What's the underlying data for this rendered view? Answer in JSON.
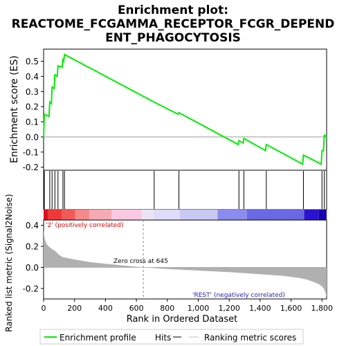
{
  "title_line1": "Enrichment plot:",
  "title_line2": "REACTOME_FCGAMMA_RECEPTOR_FCGR_DEPEND",
  "title_line3": "ENT_PHAGOCYTOSIS",
  "colors": {
    "profile": "#00ee00",
    "hits": "#000000",
    "metric_fill": "#b0b0b0",
    "zero_line": "#888888",
    "pos_label": "#dd0000",
    "neg_label": "#1f1fbf"
  },
  "chart_data": [
    {
      "type": "line",
      "name": "enrichment-profile",
      "ylabel": "Enrichment score (ES)",
      "xlim": [
        0,
        1830
      ],
      "ylim": [
        -0.22,
        0.58
      ],
      "yticks": [
        -0.2,
        -0.1,
        0.0,
        0.1,
        0.2,
        0.3,
        0.4,
        0.5
      ],
      "ytick_labels": [
        "-0.2",
        "-0.1",
        "0.0",
        "0.1",
        "0.2",
        "0.3",
        "0.4",
        "0.5"
      ],
      "x": [
        0,
        5,
        35,
        40,
        50,
        55,
        68,
        73,
        88,
        93,
        120,
        125,
        130,
        135,
        715,
        870,
        875,
        1258,
        1263,
        1290,
        1295,
        1435,
        1440,
        1675,
        1680,
        1795,
        1800,
        1810,
        1815,
        1830
      ],
      "y": [
        0.0,
        0.15,
        0.135,
        0.23,
        0.22,
        0.33,
        0.32,
        0.41,
        0.4,
        0.47,
        0.46,
        0.51,
        0.5,
        0.545,
        0.23,
        0.15,
        0.16,
        -0.05,
        -0.025,
        -0.04,
        -0.01,
        -0.09,
        -0.05,
        -0.18,
        -0.12,
        -0.18,
        -0.09,
        -0.09,
        0.012,
        0.0
      ]
    },
    {
      "type": "scatter",
      "name": "hits",
      "x": [
        5,
        40,
        55,
        73,
        93,
        125,
        135,
        715,
        875,
        1263,
        1295,
        1440,
        1680,
        1800,
        1815
      ]
    },
    {
      "type": "area",
      "name": "ranking-metric",
      "xlabel": "Rank in Ordered Dataset",
      "ylabel": "Ranked list metric (Signal2Noise)",
      "xlim": [
        0,
        1830
      ],
      "ylim": [
        -0.3,
        0.45
      ],
      "xticks": [
        0,
        200,
        400,
        600,
        800,
        1000,
        1200,
        1400,
        1600,
        1800
      ],
      "xtick_labels": [
        "0",
        "200",
        "400",
        "600",
        "800",
        "1,000",
        "1,200",
        "1,400",
        "1,600",
        "1,800"
      ],
      "yticks": [
        -0.2,
        0.0,
        0.2,
        0.4
      ],
      "ytick_labels": [
        "-0.2",
        "0.0",
        "0.2",
        "0.4"
      ],
      "x": [
        0,
        5,
        10,
        20,
        40,
        60,
        80,
        100,
        120,
        150,
        200,
        300,
        400,
        500,
        645,
        800,
        1000,
        1200,
        1400,
        1550,
        1650,
        1700,
        1750,
        1780,
        1800,
        1815,
        1825,
        1830
      ],
      "y": [
        0.35,
        0.3,
        0.26,
        0.22,
        0.19,
        0.17,
        0.15,
        0.12,
        0.1,
        0.09,
        0.075,
        0.05,
        0.035,
        0.02,
        0.0,
        -0.015,
        -0.03,
        -0.045,
        -0.065,
        -0.08,
        -0.1,
        -0.115,
        -0.14,
        -0.16,
        -0.18,
        -0.21,
        -0.25,
        -0.28
      ],
      "zero_cross": 645,
      "zero_cross_label": "Zero cross at 645",
      "pos_label": "'2' (positively correlated)",
      "neg_label": "'REST' (negatively correlated)"
    }
  ],
  "legend": {
    "items": [
      {
        "label": "Enrichment profile",
        "color": "#00ee00"
      },
      {
        "label": "Hits",
        "color": "#000000"
      },
      {
        "label": "Ranking metric scores",
        "color": "#c0c0c0"
      }
    ]
  },
  "heat_band": [
    {
      "x0": 0,
      "x1": 30,
      "color": "#e01020"
    },
    {
      "x0": 30,
      "x1": 120,
      "color": "#f03838"
    },
    {
      "x0": 120,
      "x1": 205,
      "color": "#f25a5a"
    },
    {
      "x0": 205,
      "x1": 295,
      "color": "#f58888"
    },
    {
      "x0": 295,
      "x1": 440,
      "color": "#f8aab4"
    },
    {
      "x0": 440,
      "x1": 635,
      "color": "#fbc8e2"
    },
    {
      "x0": 635,
      "x1": 710,
      "color": "#ece4f4"
    },
    {
      "x0": 710,
      "x1": 880,
      "color": "#dedcf8"
    },
    {
      "x0": 880,
      "x1": 1125,
      "color": "#cac8f4"
    },
    {
      "x0": 1125,
      "x1": 1315,
      "color": "#8c8cf0"
    },
    {
      "x0": 1315,
      "x1": 1685,
      "color": "#6a68e4"
    },
    {
      "x0": 1685,
      "x1": 1780,
      "color": "#2a12d0"
    },
    {
      "x0": 1780,
      "x1": 1830,
      "color": "#1800b0"
    }
  ]
}
